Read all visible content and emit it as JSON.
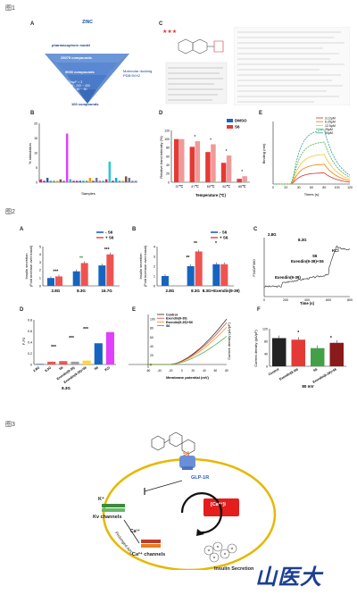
{
  "figure_labels": {
    "fig1": "图1",
    "fig2": "图2",
    "fig3": "图3"
  },
  "panel_labels": {
    "A": "A",
    "C": "C",
    "B": "B",
    "D": "D",
    "E": "E",
    "A2": "A",
    "B2": "B",
    "C2": "C",
    "D2": "D",
    "E2": "E",
    "F2": "F"
  },
  "funnel": {
    "top": "ZINC",
    "levels": [
      "pharmacophore model",
      "25075 compounds",
      "5000 compounds",
      "ChspF > 3\nMW : 200 ~ 400\nPSA : 50 ~ 80",
      "100 compounds"
    ],
    "side": "Molecular docking\nPDB:5VX2"
  },
  "charts": {
    "b1": {
      "xlabel": "Samples",
      "ylabel": "% stimulation"
    },
    "d1": {
      "xlabel": "Temperature (℃)",
      "ylabel": "Relative band intensity (%)",
      "legend": [
        "DMSO",
        "S6"
      ],
      "categories": [
        "37℃",
        "47℃",
        "60℃",
        "62℃",
        "65℃"
      ]
    },
    "e1": {
      "xlabel": "Times (s)",
      "ylabel": "Binding (nm)",
      "legend": [
        "3.12μM",
        "6.25μM",
        "12.5μM",
        "25μM",
        "50μM"
      ]
    },
    "a2": {
      "ylabel": "Insulin secretion\n(Fold increase over basal)",
      "legend": [
        "- S6",
        "+ S6"
      ],
      "categories": [
        "2.8G",
        "8.3G",
        "16.7G"
      ]
    },
    "b2": {
      "ylabel": "Insulin secretion\n(Fold increase over basal)",
      "legend": [
        "- S6",
        "+ S6"
      ],
      "categories": [
        "2.8G",
        "8.3G",
        "8.3G+Exendin(9-39)"
      ]
    },
    "c2": {
      "ylabel": "F340/F380",
      "xlabel": "Time (s)",
      "annotations": [
        "2.8G",
        "8.3G",
        "S6",
        "KCl",
        "Exendin(9-39)+S6",
        "Exendin(9-39)"
      ]
    },
    "d2": {
      "ylabel": "F-F0",
      "categories": [
        "2.8G",
        "8.3G",
        "S6",
        "Exendin(9-39)",
        "Exendin(9-39)+S6",
        "S6",
        "KCl"
      ],
      "group": "8.3G"
    },
    "e2": {
      "ylabel": "Current density (pA/pF)",
      "xlabel": "Membrane potential (mV)",
      "legend": [
        "Control",
        "Exendin(9-39)",
        "Exendin(9-39)+S6",
        "S6"
      ]
    },
    "f2": {
      "ylabel": "Current density (pA/pF)",
      "xlabel": "80 mV",
      "categories": [
        "Control",
        "Exendin(9-39)",
        "S6",
        "Exendin(9-39)+S6"
      ]
    }
  },
  "scheme": {
    "s6": "S6",
    "receptor": "GLP-1R",
    "k": "K⁺",
    "kv": "Kv channels",
    "prolong": "Prolonged APD",
    "ca_ion": "Ca²⁺",
    "ca_channel": "Ca²⁺ channels",
    "ca_in": "[Ca²⁺]i",
    "insulin": "Insulin Secretion"
  },
  "logo": "山医大",
  "chart_data": [
    {
      "type": "bar",
      "id": "fig1-B",
      "xlabel": "Samples",
      "ylabel": "% stimulation",
      "ylim": [
        0,
        20
      ],
      "values": [
        1,
        0.5,
        1.5,
        0.5,
        0.5,
        0.5,
        1,
        0.5,
        16.5,
        1,
        0.5,
        0.5,
        0.5,
        0.5,
        0.5,
        1.5,
        0.5,
        1.5,
        0.5,
        0.5,
        1,
        7,
        0.5,
        1.5,
        0.5,
        0.5,
        2,
        1.5,
        0.5,
        0.5
      ]
    },
    {
      "type": "bar",
      "id": "fig1-D",
      "xlabel": "Temperature (℃)",
      "ylabel": "Relative band intensity (%)",
      "categories": [
        "37℃",
        "47℃",
        "60℃",
        "62℃",
        "65℃"
      ],
      "ylim": [
        0,
        120
      ],
      "series": [
        {
          "name": "DMSO",
          "values": [
            100,
            82,
            70,
            45,
            8
          ]
        },
        {
          "name": "S6",
          "values": [
            100,
            95,
            88,
            62,
            14
          ]
        }
      ]
    },
    {
      "type": "line",
      "id": "fig1-E",
      "xlabel": "Times (s)",
      "ylabel": "Binding (nm)",
      "xlim": [
        0,
        120
      ],
      "series": [
        {
          "name": "3.12μM"
        },
        {
          "name": "6.25μM"
        },
        {
          "name": "12.5μM"
        },
        {
          "name": "25μM"
        },
        {
          "name": "50μM"
        }
      ]
    },
    {
      "type": "bar",
      "id": "fig2-A",
      "ylabel": "Insulin secretion (Fold increase over basal)",
      "categories": [
        "2.8G",
        "8.3G",
        "16.7G"
      ],
      "ylim": [
        0,
        5
      ],
      "series": [
        {
          "name": "- S6",
          "values": [
            1.0,
            1.85,
            2.6
          ]
        },
        {
          "name": "+ S6",
          "values": [
            1.2,
            2.9,
            4.0
          ]
        }
      ]
    },
    {
      "type": "bar",
      "id": "fig2-B",
      "ylabel": "Insulin secretion (Fold increase over basal)",
      "categories": [
        "2.8G",
        "8.3G",
        "8.3G+Exendin(9-39)"
      ],
      "ylim": [
        0,
        4
      ],
      "series": [
        {
          "name": "- S6",
          "values": [
            1.0,
            2.0,
            2.2
          ]
        },
        {
          "name": "+ S6",
          "values": [
            null,
            3.5,
            2.2
          ]
        }
      ]
    },
    {
      "type": "bar",
      "id": "fig2-D",
      "ylabel": "F-F0",
      "categories": [
        "2.8G",
        "8.3G",
        "S6",
        "Exendin(9-39)",
        "Exendin(9-39)+S6",
        "S6",
        "KCl"
      ],
      "values": [
        0.01,
        0.05,
        0.06,
        0.05,
        0.07,
        0.38,
        0.58
      ],
      "ylim": [
        0,
        0.8
      ]
    },
    {
      "type": "bar",
      "id": "fig2-F",
      "ylabel": "Current density (pA/pF)",
      "xlabel": "80 mV",
      "categories": [
        "Control",
        "Exendin(9-39)",
        "S6",
        "Exendin(9-39)+S6"
      ],
      "values": [
        90,
        85,
        58,
        75
      ],
      "ylim": [
        0,
        120
      ]
    }
  ]
}
